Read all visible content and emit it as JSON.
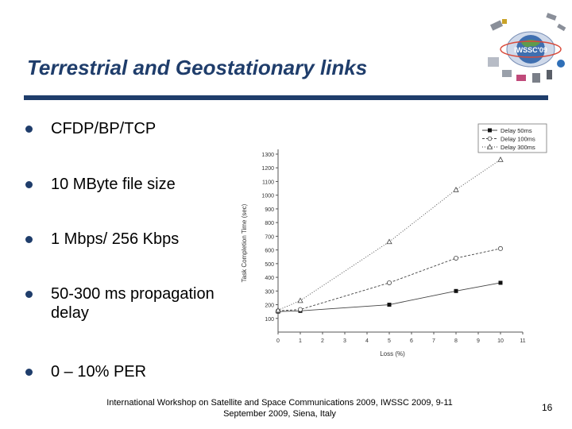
{
  "slide": {
    "title": "Terrestrial and Geostationary links",
    "accent_color": "#1f3d6b",
    "logo_icon": "iwssc-satellite-logo-icon",
    "logo_text": "IWSSC'09",
    "bullets": [
      {
        "text": "CFDP/BP/TCP"
      },
      {
        "text": "10 MByte file size"
      },
      {
        "text": "1 Mbps/ 256 Kbps"
      },
      {
        "text": "50-300 ms propagation delay"
      },
      {
        "text": "0 – 10% PER"
      }
    ],
    "footer": "International Workshop on Satellite and Space Communications 2009, IWSSC 2009, 9-11 September 2009, Siena, Italy",
    "page_number": "16"
  },
  "chart_data": {
    "type": "line",
    "title": "",
    "xlabel": "Loss (%)",
    "ylabel": "Task Completion Time (sec)",
    "xlim": [
      0,
      11
    ],
    "ylim": [
      0,
      1300
    ],
    "xticks": [
      "0",
      "1",
      "2",
      "3",
      "4",
      "5",
      "6",
      "7",
      "8",
      "9",
      "10",
      "11"
    ],
    "yticks": [
      "100",
      "200",
      "300",
      "400",
      "500",
      "600",
      "700",
      "800",
      "900",
      "1000",
      "1100",
      "1200",
      "1300"
    ],
    "legend_position": "top-right",
    "series": [
      {
        "name": "Delay 50ms",
        "marker": "square-filled",
        "line": "solid",
        "x": [
          0,
          1,
          5,
          8,
          10
        ],
        "y": [
          150,
          155,
          200,
          300,
          360
        ]
      },
      {
        "name": "Delay 100ms",
        "marker": "circle-open",
        "line": "dashed",
        "x": [
          0,
          1,
          5,
          8,
          10
        ],
        "y": [
          155,
          165,
          360,
          540,
          610
        ]
      },
      {
        "name": "Delay 300ms",
        "marker": "triangle-open",
        "line": "dotted",
        "x": [
          0,
          1,
          5,
          8,
          10
        ],
        "y": [
          160,
          230,
          660,
          1040,
          1260
        ]
      }
    ]
  }
}
